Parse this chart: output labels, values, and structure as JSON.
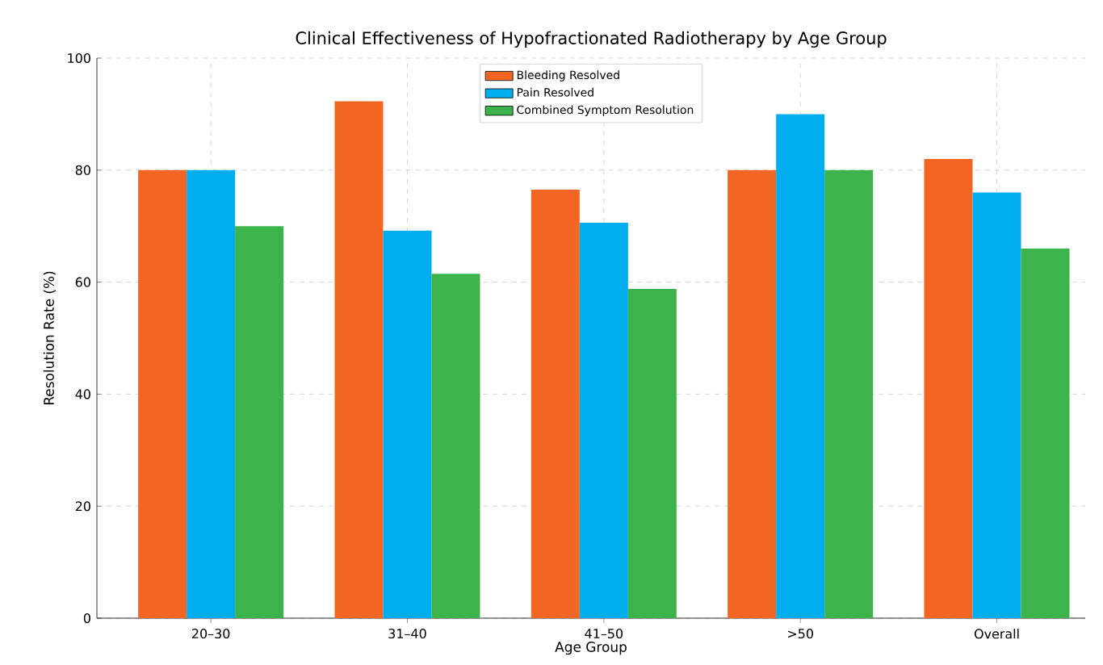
{
  "chart_data": {
    "type": "bar",
    "title": "Clinical Effectiveness of Hypofractionated Radiotherapy by Age Group",
    "xlabel": "Age Group",
    "ylabel": "Resolution Rate (%)",
    "categories": [
      "20–30",
      "31–40",
      "41–50",
      ">50",
      "Overall"
    ],
    "series": [
      {
        "name": "Bleeding Resolved",
        "color": "#f26522",
        "values": [
          80,
          92.3,
          76.5,
          80,
          82
        ]
      },
      {
        "name": "Pain Resolved",
        "color": "#00aeef",
        "values": [
          80,
          69.2,
          70.6,
          90,
          76
        ]
      },
      {
        "name": "Combined Symptom Resolution",
        "color": "#3cb44b",
        "values": [
          70,
          61.5,
          58.8,
          80,
          66
        ]
      }
    ],
    "ylim": [
      0,
      100
    ],
    "yticks": [
      0,
      20,
      40,
      60,
      80,
      100
    ],
    "grid": true,
    "legend": "top"
  }
}
